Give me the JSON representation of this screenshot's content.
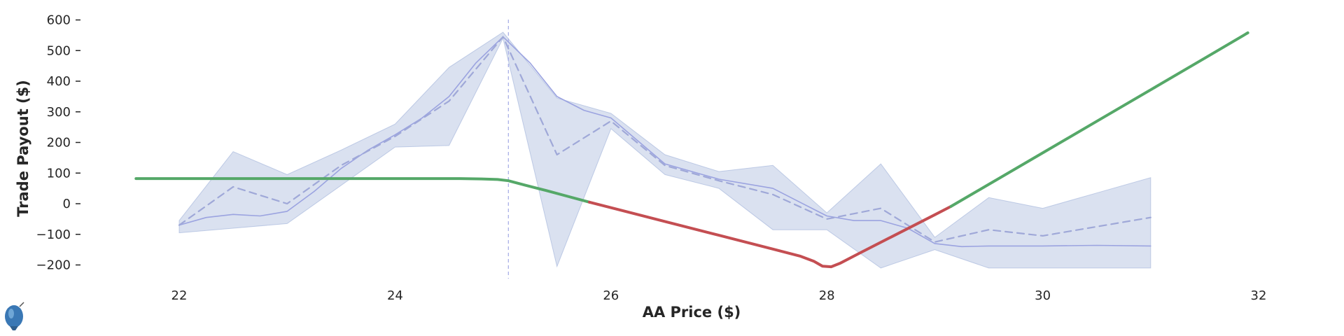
{
  "chart_data": {
    "type": "line",
    "title": "",
    "xlabel": "AA Price ($)",
    "ylabel": "Trade Payout ($)",
    "xlim": [
      20.0,
      33.0
    ],
    "ylim": [
      -240,
      610
    ],
    "xticks": [
      22,
      24,
      26,
      28,
      30,
      32
    ],
    "xtick_labels": [
      "22",
      "24",
      "26",
      "28",
      "30",
      "32"
    ],
    "yticks": [
      -200,
      -100,
      0,
      100,
      200,
      300,
      400,
      500,
      600
    ],
    "ytick_labels": [
      "−200",
      "−100",
      "0",
      "100",
      "200",
      "300",
      "400",
      "500",
      "600"
    ],
    "grid": false,
    "legend": "none",
    "vertical_marker": {
      "x": 25.05,
      "color": "#aab0e8"
    },
    "band": {
      "color": "#9fb0d8",
      "x": [
        22,
        22.5,
        23,
        23.5,
        24,
        24.5,
        25,
        25.5,
        26,
        26.5,
        27,
        27.5,
        28,
        28.5,
        29,
        29.5,
        30,
        30.5,
        31
      ],
      "upper": [
        -55,
        170,
        95,
        175,
        260,
        445,
        560,
        345,
        295,
        160,
        105,
        125,
        -30,
        130,
        -110,
        20,
        -15,
        35,
        85
      ],
      "lower": [
        -95,
        -80,
        -65,
        60,
        185,
        190,
        540,
        -205,
        245,
        95,
        50,
        -85,
        -85,
        -210,
        -150,
        -210,
        -210,
        -210,
        -210
      ]
    },
    "series": [
      {
        "color": "#9ba3e0",
        "style": "solid",
        "x": [
          22,
          22.25,
          22.5,
          22.75,
          23,
          23.25,
          23.5,
          23.75,
          24,
          24.25,
          24.5,
          24.75,
          25,
          25.25,
          25.5,
          25.75,
          26,
          26.5,
          27,
          27.5,
          28,
          28.25,
          28.5,
          28.75,
          29,
          29.25,
          29.5,
          30,
          30.5,
          31
        ],
        "values": [
          -70,
          -45,
          -35,
          -40,
          -25,
          40,
          115,
          175,
          225,
          280,
          350,
          460,
          545,
          460,
          350,
          305,
          280,
          130,
          80,
          50,
          -40,
          -55,
          -55,
          -80,
          -130,
          -140,
          -138,
          -138,
          -136,
          -138
        ]
      },
      {
        "color": "#9fa8d8",
        "style": "dashed",
        "x": [
          22,
          22.5,
          23,
          23.5,
          24,
          24.5,
          25,
          25.5,
          26,
          26.5,
          27,
          27.5,
          28,
          28.5,
          29,
          29.5,
          30,
          30.5,
          31
        ],
        "values": [
          -70,
          55,
          0,
          125,
          220,
          335,
          545,
          160,
          270,
          125,
          75,
          30,
          -50,
          -15,
          -125,
          -85,
          -105,
          -75,
          -45
        ]
      },
      {
        "color": "#55a868",
        "style": "solid",
        "x": [
          21.6,
          22.5,
          23,
          24,
          24.6,
          24.8,
          24.95,
          25.05,
          25.2,
          25.4,
          25.6,
          25.8
        ],
        "values": [
          82,
          82,
          82,
          82,
          82,
          81,
          79,
          75,
          61,
          43,
          24,
          5
        ]
      },
      {
        "color": "#c44e52",
        "style": "solid",
        "x": [
          25.8,
          26.5,
          27,
          27.5,
          27.75,
          27.88,
          27.96,
          28.04,
          28.12,
          28.3,
          28.6,
          29,
          29.15
        ],
        "values": [
          5,
          -58,
          -103,
          -148,
          -171,
          -188,
          -204,
          -206,
          -195,
          -162,
          -108,
          -36,
          -9
        ]
      },
      {
        "color": "#55a868",
        "style": "solid",
        "x": [
          29.15,
          29.5,
          30,
          30.5,
          31,
          31.5,
          31.9
        ],
        "values": [
          -9,
          63,
          166,
          269,
          372,
          475,
          558
        ]
      }
    ]
  },
  "icon": "balloon-logo-icon"
}
